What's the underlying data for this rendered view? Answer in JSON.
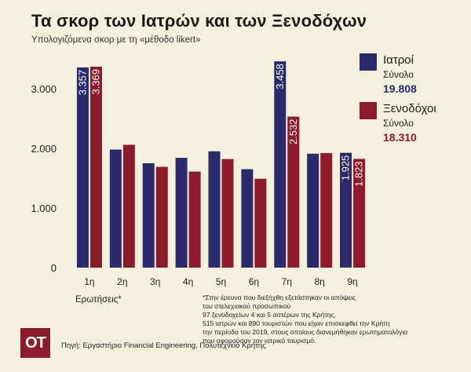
{
  "header": {
    "title": "Τα σκορ των Ιατρών και των Ξενοδόχων",
    "subtitle": "Υπολογιζόμενα σκορ με τη «μέθοδο likert»"
  },
  "legend": [
    {
      "name": "Ιατροί",
      "sub": "Σύνολο",
      "total": "19.808",
      "color": "#2a2a6c"
    },
    {
      "name": "Ξενοδόχοι",
      "sub": "Σύνολο",
      "total": "18.310",
      "color": "#8e1b2a"
    }
  ],
  "x_caption": "Ερωτήσεις*",
  "footnote": [
    "*Στην έρευνα που διεξήχθη εξετάστηκαν οι απόψεις",
    "του στελεχιακού προσωπικού",
    "97 ξενοδοχείων 4 και 5 αστέρων της Κρήτης,",
    "515 ιατρών και 890 τουριστών που είχαν επισκεφθεί την Κρήτη",
    "την περίοδο του 2019, στους οποίους διανεμήθηκαν ερωτηματολόγια",
    "που αφορούσαν τον ιατρικό τουρισμό."
  ],
  "logo": "OT",
  "source": "Πηγή: Εργαστήριο Financial Engineering, Πολυτεχνείο Κρήτης",
  "chart_data": {
    "type": "bar",
    "categories": [
      "1η",
      "2η",
      "3η",
      "4η",
      "5η",
      "6η",
      "7η",
      "8η",
      "9η"
    ],
    "series": [
      {
        "name": "Ιατροί",
        "color": "#2a2a6c",
        "values": [
          3357,
          1980,
          1750,
          1840,
          1950,
          1650,
          3458,
          1910,
          1925
        ]
      },
      {
        "name": "Ξενοδόχοι",
        "color": "#8e1b2a",
        "values": [
          3369,
          2060,
          1690,
          1610,
          1820,
          1490,
          2532,
          1920,
          1823
        ]
      }
    ],
    "data_labels": [
      {
        "series": 0,
        "index": 0,
        "text": "3.357"
      },
      {
        "series": 1,
        "index": 0,
        "text": "3.369"
      },
      {
        "series": 0,
        "index": 6,
        "text": "3.458"
      },
      {
        "series": 1,
        "index": 6,
        "text": "2.532"
      },
      {
        "series": 0,
        "index": 8,
        "text": "1.925"
      },
      {
        "series": 1,
        "index": 8,
        "text": "1.823"
      }
    ],
    "yticks": [
      0,
      1000,
      2000,
      3000
    ],
    "ytick_labels": [
      "0",
      "1.000",
      "2.000",
      "3.000"
    ],
    "ylim": [
      0,
      3600
    ],
    "grid": false,
    "legend_position": "right"
  }
}
